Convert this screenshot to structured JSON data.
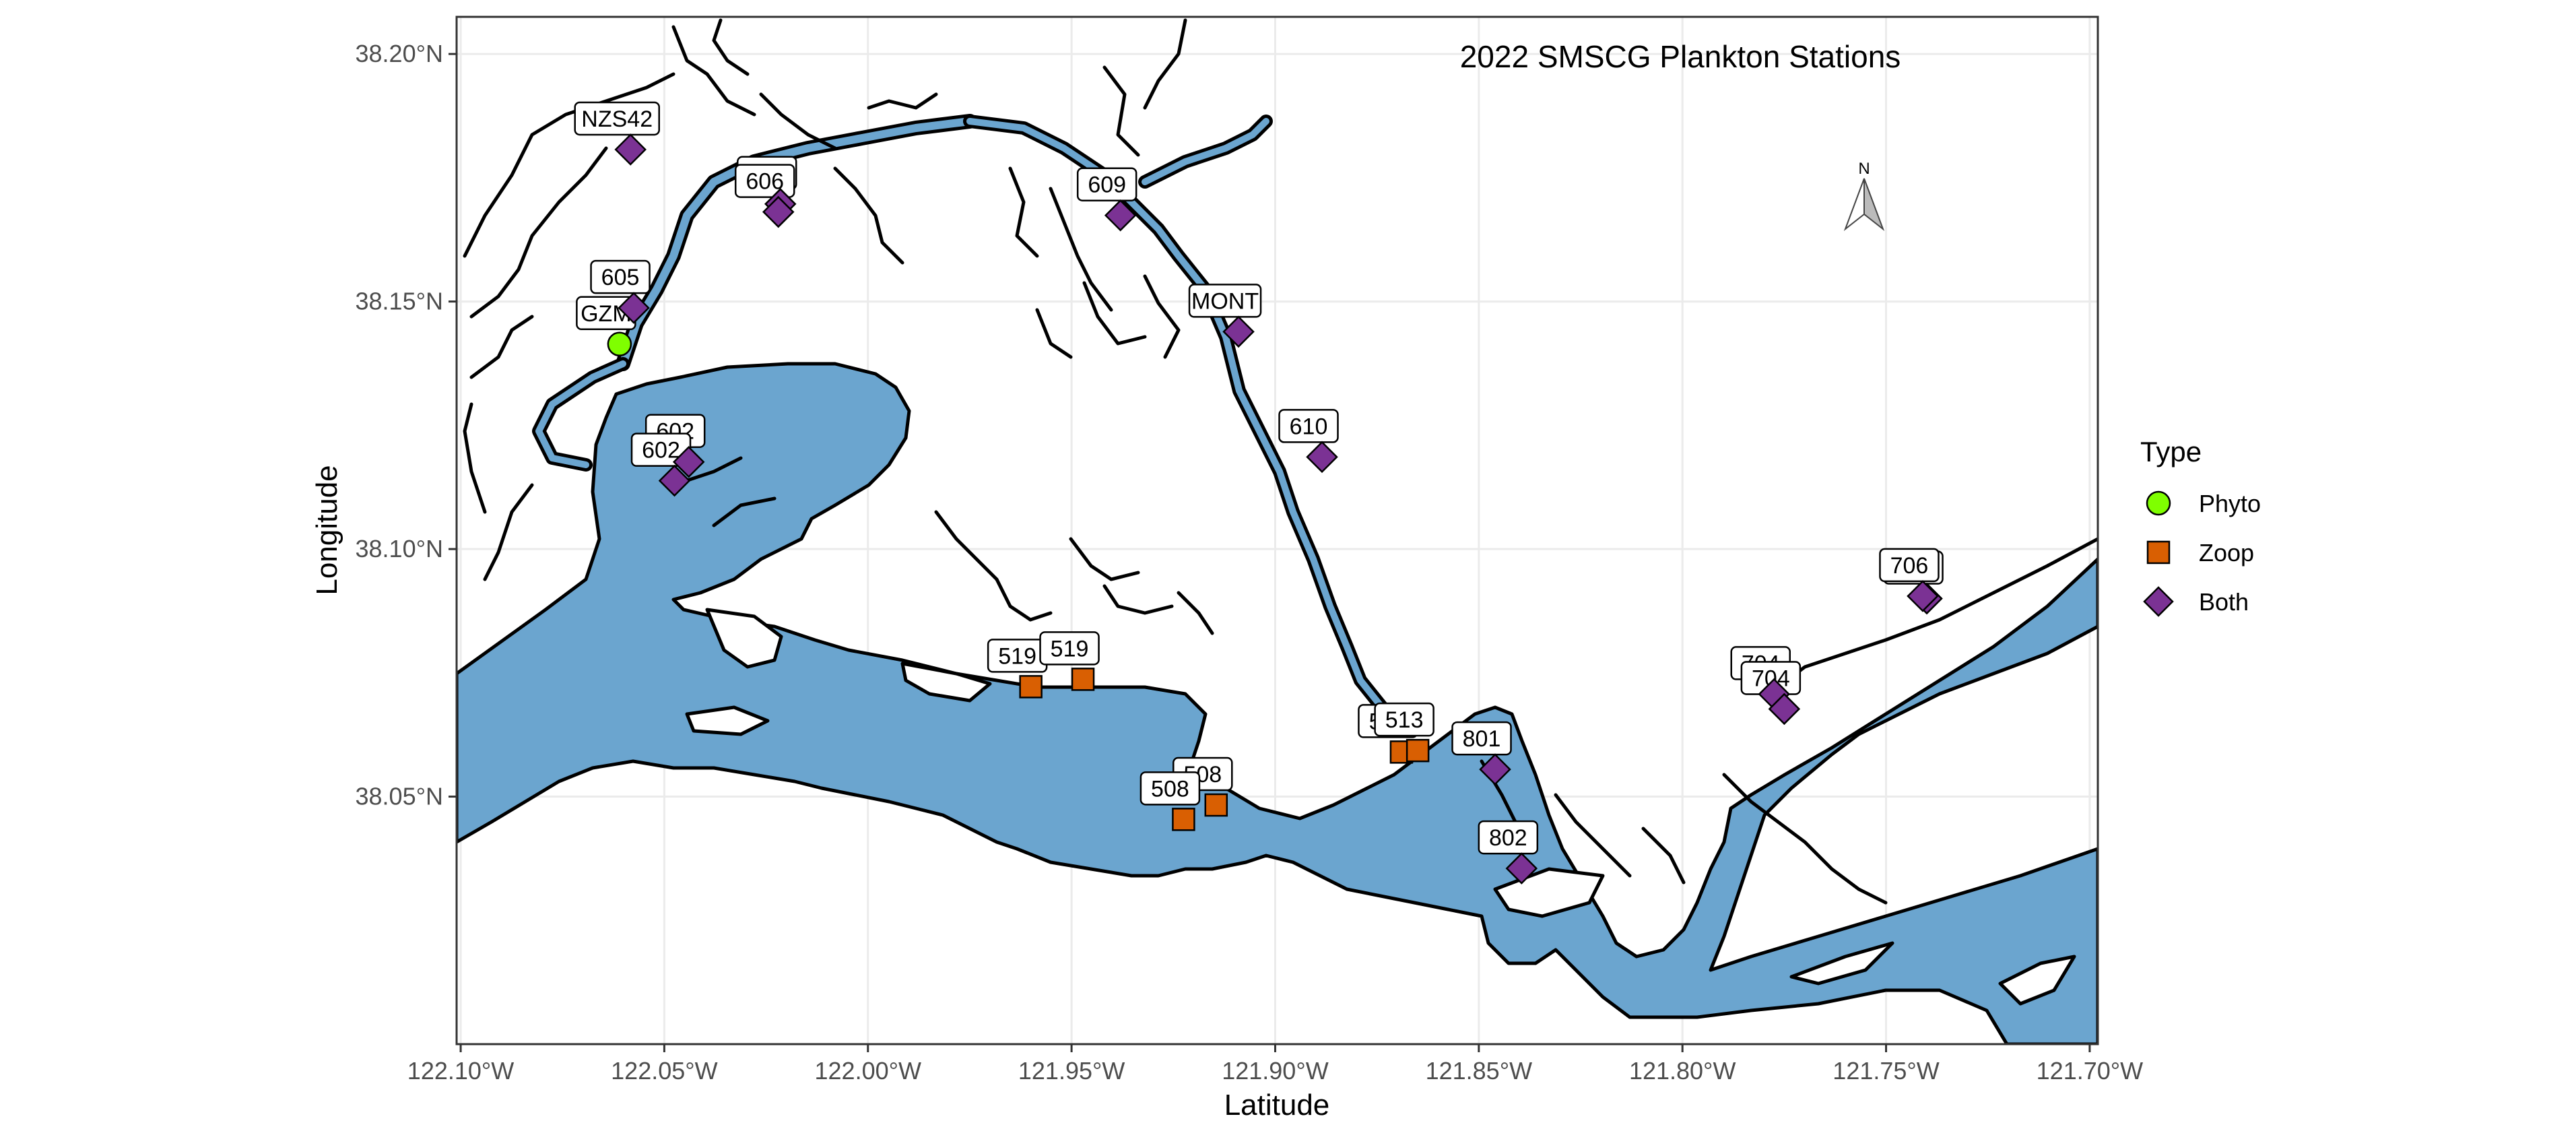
{
  "map": {
    "title": "2022 SMSCG Plankton Stations",
    "xlabel": "Latitude",
    "ylabel": "Longitude",
    "north_arrow": "N",
    "x_ticks": [
      {
        "value": -122.1,
        "label": "122.10°W"
      },
      {
        "value": -122.05,
        "label": "122.05°W"
      },
      {
        "value": -122.0,
        "label": "122.00°W"
      },
      {
        "value": -121.95,
        "label": "121.95°W"
      },
      {
        "value": -121.9,
        "label": "121.90°W"
      },
      {
        "value": -121.85,
        "label": "121.85°W"
      },
      {
        "value": -121.8,
        "label": "121.80°W"
      },
      {
        "value": -121.75,
        "label": "121.75°W"
      },
      {
        "value": -121.7,
        "label": "121.70°W"
      }
    ],
    "y_ticks": [
      {
        "value": 38.05,
        "label": "38.05°N"
      },
      {
        "value": 38.1,
        "label": "38.10°N"
      },
      {
        "value": 38.15,
        "label": "38.15°N"
      },
      {
        "value": 38.2,
        "label": "38.20°N"
      }
    ],
    "xlim": [
      -122.101,
      -121.698
    ],
    "ylim": [
      38.0,
      38.2075
    ],
    "colors": {
      "water": "#6BA5CF",
      "phyto": "#7FFF00",
      "zoop": "#D95F02",
      "both": "#7B3294",
      "grid": "#EBEBEB"
    }
  },
  "legend": {
    "title": "Type",
    "items": [
      {
        "label": "Phyto",
        "shape": "circle",
        "color": "#7FFF00"
      },
      {
        "label": "Zoop",
        "shape": "square",
        "color": "#D95F02"
      },
      {
        "label": "Both",
        "shape": "diamond",
        "color": "#7B3294"
      }
    ]
  },
  "stations": [
    {
      "label": "NZS42",
      "lon": -122.0583,
      "lat": 38.1807,
      "type": "Both"
    },
    {
      "label": "606",
      "lon": -122.0215,
      "lat": 38.1697,
      "type": "Both"
    },
    {
      "label": "606",
      "lon": -122.022,
      "lat": 38.1681,
      "type": "Both"
    },
    {
      "label": "609",
      "lon": -121.938,
      "lat": 38.1674,
      "type": "Both"
    },
    {
      "label": "605",
      "lon": -122.0575,
      "lat": 38.1487,
      "type": "Both"
    },
    {
      "label": "GZM",
      "lon": -122.061,
      "lat": 38.1414,
      "type": "Phyto"
    },
    {
      "label": "MONT",
      "lon": -121.909,
      "lat": 38.1439,
      "type": "Both"
    },
    {
      "label": "602",
      "lon": -122.044,
      "lat": 38.1176,
      "type": "Both"
    },
    {
      "label": "602",
      "lon": -122.0475,
      "lat": 38.1138,
      "type": "Both"
    },
    {
      "label": "610",
      "lon": -121.8885,
      "lat": 38.1186,
      "type": "Both"
    },
    {
      "label": "706",
      "lon": -121.74,
      "lat": 38.09,
      "type": "Both"
    },
    {
      "label": "706",
      "lon": -121.741,
      "lat": 38.0905,
      "type": "Both"
    },
    {
      "label": "519",
      "lon": -121.96,
      "lat": 38.0722,
      "type": "Zoop"
    },
    {
      "label": "519",
      "lon": -121.9472,
      "lat": 38.0737,
      "type": "Zoop"
    },
    {
      "label": "704",
      "lon": -121.7775,
      "lat": 38.0707,
      "type": "Both"
    },
    {
      "label": "704",
      "lon": -121.775,
      "lat": 38.0677,
      "type": "Both"
    },
    {
      "label": "513",
      "lon": -121.869,
      "lat": 38.059,
      "type": "Zoop"
    },
    {
      "label": "513",
      "lon": -121.865,
      "lat": 38.0593,
      "type": "Zoop"
    },
    {
      "label": "801",
      "lon": -121.846,
      "lat": 38.0555,
      "type": "Both"
    },
    {
      "label": "508",
      "lon": -121.9145,
      "lat": 38.0483,
      "type": "Zoop"
    },
    {
      "label": "508",
      "lon": -121.9225,
      "lat": 38.0454,
      "type": "Zoop"
    },
    {
      "label": "802",
      "lon": -121.8395,
      "lat": 38.0355,
      "type": "Both"
    }
  ]
}
